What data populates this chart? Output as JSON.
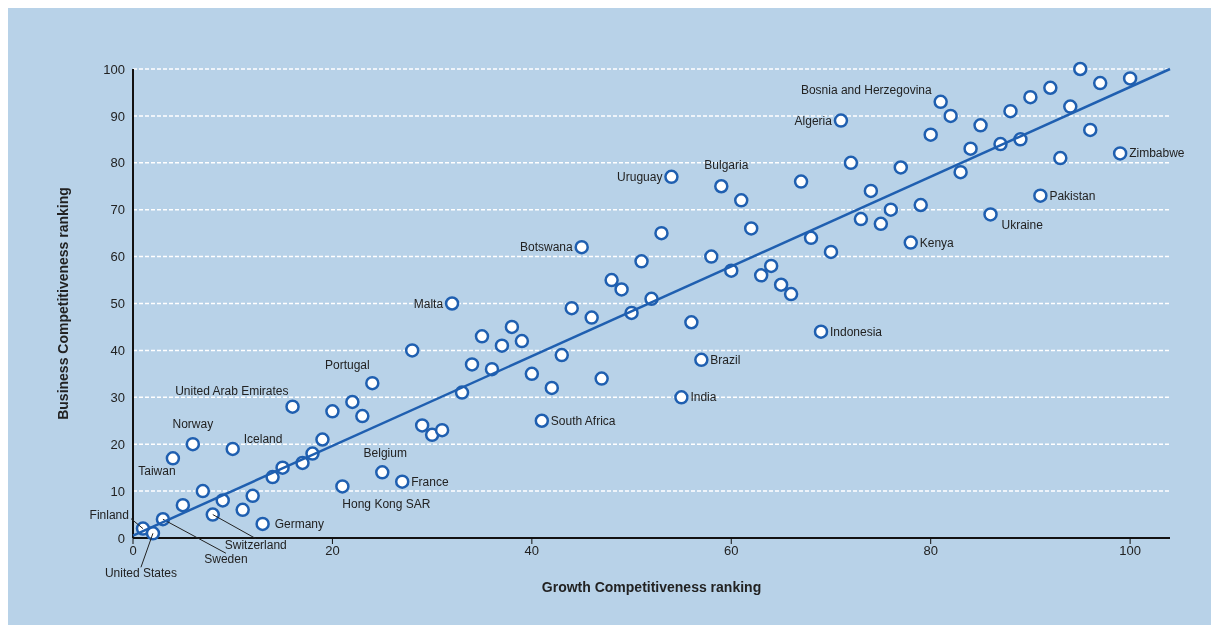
{
  "chart_data": {
    "type": "scatter",
    "xlabel": "Growth Competitiveness ranking",
    "ylabel": "Business Competitiveness ranking",
    "xlim": [
      0,
      104
    ],
    "xticks": [
      0,
      20,
      40,
      60,
      80,
      100
    ],
    "ylim": [
      0,
      100
    ],
    "yticks": [
      0,
      10,
      20,
      30,
      40,
      50,
      60,
      70,
      80,
      90,
      100
    ],
    "grid": "y",
    "series": [
      {
        "marker": "circle",
        "color": "#1f5fb0",
        "x": [
          1,
          2,
          3,
          8,
          13,
          4,
          6,
          10,
          16,
          24,
          32,
          21,
          25,
          27,
          41,
          45,
          54,
          59,
          57,
          55,
          69,
          78,
          71,
          81,
          86,
          91,
          99,
          5,
          7,
          9,
          11,
          12,
          14,
          15,
          17,
          18,
          19,
          20,
          22,
          23,
          28,
          29,
          30,
          31,
          33,
          35,
          38,
          37,
          39,
          34,
          36,
          40,
          43,
          42,
          47,
          44,
          46,
          48,
          49,
          50,
          51,
          52,
          53,
          56,
          58,
          60,
          63,
          64,
          65,
          62,
          61,
          67,
          66,
          68,
          70,
          72,
          77,
          80,
          82,
          74,
          73,
          75,
          76,
          79,
          83,
          84,
          85,
          87,
          88,
          89,
          90,
          92,
          95,
          94,
          97,
          100,
          96,
          93
        ],
        "values": [
          2,
          1,
          4,
          5,
          3,
          17,
          20,
          19,
          28,
          33,
          50,
          11,
          14,
          12,
          25,
          62,
          77,
          75,
          38,
          30,
          44,
          63,
          89,
          93,
          69,
          73,
          82,
          7,
          10,
          8,
          6,
          9,
          13,
          15,
          16,
          18,
          21,
          27,
          29,
          26,
          40,
          24,
          22,
          23,
          31,
          43,
          45,
          41,
          42,
          37,
          36,
          35,
          39,
          32,
          34,
          49,
          47,
          55,
          53,
          48,
          59,
          51,
          65,
          46,
          60,
          57,
          56,
          58,
          54,
          66,
          72,
          76,
          52,
          64,
          61,
          80,
          79,
          86,
          90,
          74,
          68,
          67,
          70,
          71,
          78,
          83,
          88,
          84,
          91,
          85,
          94,
          96,
          100,
          92,
          97,
          98,
          87,
          81
        ],
        "value_labels": [
          "Finland",
          "United States",
          "Sweden",
          "Switzerland",
          "Germany",
          "Taiwan",
          "Norway",
          "Iceland",
          "United Arab Emirates",
          "Portugal",
          "Malta",
          "Hong Kong SAR",
          "Belgium",
          "France",
          "South Africa",
          "Botswana",
          "Uruguay",
          "Bulgaria",
          "Brazil",
          "India",
          "Indonesia",
          "Kenya",
          "Algeria",
          "Bosnia and Herzegovina",
          "Ukraine",
          "Pakistan",
          "Zimbabwe",
          null,
          null,
          null,
          null,
          null,
          null,
          null,
          null,
          null,
          null,
          null,
          null,
          null,
          null,
          null,
          null,
          null,
          null,
          null,
          null,
          null,
          null,
          null,
          null,
          null,
          null,
          null,
          null,
          null,
          null,
          null,
          null,
          null,
          null,
          null,
          null,
          null,
          null,
          null,
          null,
          null,
          null,
          null,
          null,
          null,
          null,
          null,
          null,
          null,
          null,
          null,
          null,
          null,
          null,
          null,
          null,
          null,
          null,
          null,
          null,
          null,
          null,
          null,
          null,
          null,
          null,
          null,
          null,
          null,
          null,
          null
        ]
      },
      {
        "type": "line",
        "marker": "none",
        "color": "#1f5fb0",
        "x": [
          0,
          104
        ],
        "values": [
          0.5,
          100
        ]
      }
    ]
  }
}
